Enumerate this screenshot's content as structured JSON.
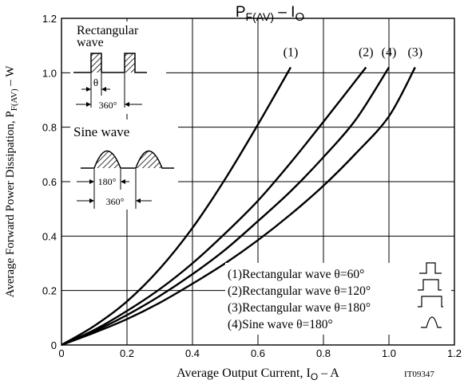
{
  "chart_data": {
    "type": "line",
    "title_main": "P",
    "title_sub": "F(AV)",
    "title_rest": " – I",
    "title_sub2": "O",
    "xlabel_main": "Average Output Current, I",
    "xlabel_sub": "O",
    "xlabel_rest": " – A",
    "ylabel_main": "Average Forward Power Dissipation, P",
    "ylabel_sub": "F(AV)",
    "ylabel_rest": " – W",
    "figure_code": "IT09347",
    "xlim": [
      0,
      1.2
    ],
    "ylim": [
      0,
      1.2
    ],
    "x_ticks": [
      "0",
      "0.2",
      "0.4",
      "0.6",
      "0.8",
      "1.0",
      "1.2"
    ],
    "y_ticks": [
      "0",
      "0.2",
      "0.4",
      "0.6",
      "0.8",
      "1.0",
      "1.2"
    ],
    "grid": true,
    "series": [
      {
        "name": "(1)",
        "x": [
          0,
          0.1,
          0.2,
          0.3,
          0.4,
          0.5,
          0.6,
          0.7
        ],
        "y": [
          0,
          0.07,
          0.16,
          0.28,
          0.43,
          0.61,
          0.81,
          1.02
        ]
      },
      {
        "name": "(2)",
        "x": [
          0,
          0.1,
          0.2,
          0.3,
          0.4,
          0.5,
          0.6,
          0.7,
          0.8,
          0.93
        ],
        "y": [
          0,
          0.055,
          0.125,
          0.205,
          0.3,
          0.41,
          0.53,
          0.67,
          0.82,
          1.02
        ]
      },
      {
        "name": "(4)",
        "x": [
          0,
          0.1,
          0.2,
          0.3,
          0.4,
          0.5,
          0.6,
          0.7,
          0.8,
          0.9,
          1.0
        ],
        "y": [
          0,
          0.05,
          0.11,
          0.18,
          0.26,
          0.35,
          0.455,
          0.565,
          0.69,
          0.83,
          1.02
        ]
      },
      {
        "name": "(3)",
        "x": [
          0,
          0.1,
          0.2,
          0.3,
          0.4,
          0.5,
          0.6,
          0.7,
          0.8,
          0.9,
          1.0,
          1.08
        ],
        "y": [
          0,
          0.045,
          0.095,
          0.155,
          0.225,
          0.3,
          0.385,
          0.48,
          0.585,
          0.705,
          0.84,
          1.02
        ]
      }
    ],
    "legend": [
      "(1)Rectangular wave θ=60°",
      "(2)Rectangular wave θ=120°",
      "(3)Rectangular wave θ=180°",
      "(4)Sine wave θ=180°"
    ],
    "legend_placement": "bottom-right",
    "inset": {
      "rect_title_line1": "Rectangular",
      "rect_title_line2": "wave",
      "theta_label": "θ",
      "rect_period_label": "360°",
      "sine_title": "Sine wave",
      "sine_half_label": "180°",
      "sine_period_label": "360°"
    }
  }
}
